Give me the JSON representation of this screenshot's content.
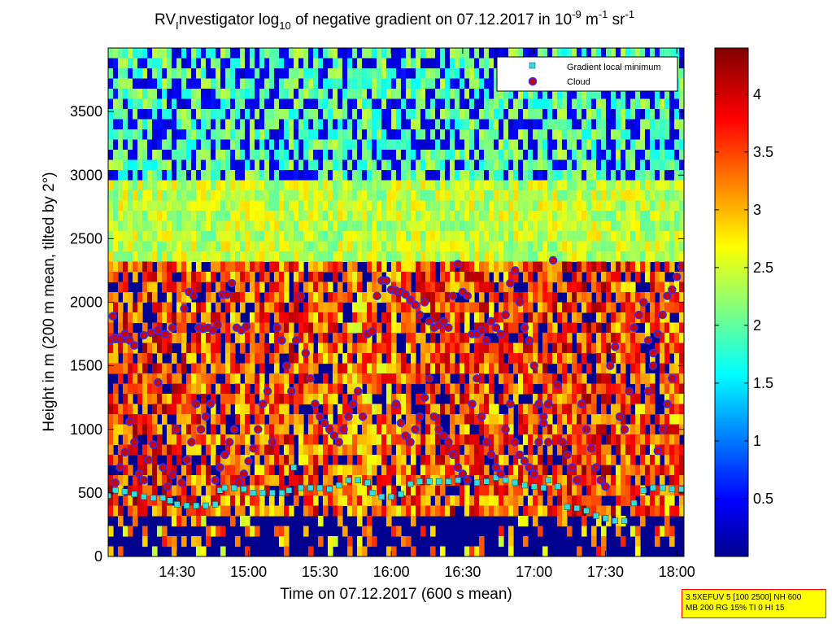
{
  "chart_data": {
    "type": "heatmap",
    "title": {
      "prefix": "RV",
      "sub1": "I",
      "middle": "nvestigator log",
      "sub2": "10",
      "rest": " of negative gradient on 07.12.2017 in 10",
      "sup1": "-9",
      "unit_m": " m",
      "sup2": "-1",
      "unit_sr": " sr",
      "sup3": "-1"
    },
    "xlabel": "Time on 07.12.2017 (600 s mean)",
    "ylabel": "Height in m (200 m mean, tilted by 2°)",
    "x_ticks": [
      "14:30",
      "15:00",
      "15:30",
      "16:00",
      "16:30",
      "17:00",
      "17:30",
      "18:00"
    ],
    "x_tick_minutes": [
      870,
      900,
      930,
      960,
      990,
      1020,
      1050,
      1080
    ],
    "xlim_minutes": [
      841,
      1083
    ],
    "ylim": [
      0,
      4000
    ],
    "y_ticks": [
      "0",
      "500",
      "1000",
      "1500",
      "2000",
      "2500",
      "3000",
      "3500"
    ],
    "y_tick_values": [
      0,
      500,
      1000,
      1500,
      2000,
      2500,
      3000,
      3500
    ],
    "colorbar": {
      "range": [
        0,
        4.4
      ],
      "ticks": [
        "0.5",
        "1",
        "1.5",
        "2",
        "2.5",
        "3",
        "3.5",
        "4"
      ],
      "tick_values": [
        0.5,
        1,
        1.5,
        2,
        2.5,
        3,
        3.5,
        4
      ],
      "colormap": "jet"
    },
    "legend": {
      "placement": "top-right",
      "entries": [
        {
          "name": "Gradient local minimum",
          "color": "#00ffff",
          "marker": "square"
        },
        {
          "name": "Cloud",
          "color": "#ff0000",
          "marker": "circle"
        }
      ]
    },
    "series": [
      {
        "name": "Gradient local minimum",
        "points": [
          [
            841,
            480
          ],
          [
            844,
            520
          ],
          [
            848,
            510
          ],
          [
            852,
            490
          ],
          [
            856,
            470
          ],
          [
            860,
            460
          ],
          [
            864,
            460
          ],
          [
            867,
            440
          ],
          [
            870,
            410
          ],
          [
            874,
            400
          ],
          [
            878,
            400
          ],
          [
            882,
            400
          ],
          [
            886,
            410
          ],
          [
            888,
            520
          ],
          [
            890,
            540
          ],
          [
            894,
            540
          ],
          [
            898,
            530
          ],
          [
            902,
            500
          ],
          [
            906,
            500
          ],
          [
            910,
            500
          ],
          [
            914,
            500
          ],
          [
            917,
            520
          ],
          [
            919,
            700
          ],
          [
            922,
            540
          ],
          [
            926,
            540
          ],
          [
            930,
            540
          ],
          [
            934,
            530
          ],
          [
            938,
            560
          ],
          [
            942,
            600
          ],
          [
            946,
            600
          ],
          [
            950,
            580
          ],
          [
            952,
            500
          ],
          [
            956,
            470
          ],
          [
            960,
            470
          ],
          [
            964,
            490
          ],
          [
            968,
            570
          ],
          [
            972,
            590
          ],
          [
            976,
            590
          ],
          [
            980,
            590
          ],
          [
            984,
            590
          ],
          [
            988,
            600
          ],
          [
            992,
            600
          ],
          [
            996,
            580
          ],
          [
            1000,
            590
          ],
          [
            1004,
            620
          ],
          [
            1008,
            600
          ],
          [
            1012,
            580
          ],
          [
            1016,
            560
          ],
          [
            1020,
            550
          ],
          [
            1024,
            540
          ],
          [
            1026,
            600
          ],
          [
            1030,
            550
          ],
          [
            1034,
            390
          ],
          [
            1038,
            380
          ],
          [
            1042,
            360
          ],
          [
            1046,
            320
          ],
          [
            1050,
            300
          ],
          [
            1054,
            280
          ],
          [
            1058,
            280
          ],
          [
            1062,
            420
          ],
          [
            1066,
            520
          ],
          [
            1070,
            540
          ],
          [
            1074,
            540
          ],
          [
            1078,
            530
          ],
          [
            1082,
            530
          ]
        ]
      },
      {
        "name": "Cloud",
        "points": [
          [
            842,
            1700
          ],
          [
            843,
            1890
          ],
          [
            844,
            1720
          ],
          [
            846,
            1710
          ],
          [
            848,
            1750
          ],
          [
            850,
            1700
          ],
          [
            852,
            1660
          ],
          [
            856,
            1740
          ],
          [
            859,
            1760
          ],
          [
            862,
            1780
          ],
          [
            865,
            1750
          ],
          [
            868,
            1800
          ],
          [
            844,
            580
          ],
          [
            846,
            700
          ],
          [
            848,
            820
          ],
          [
            850,
            1060
          ],
          [
            852,
            900
          ],
          [
            854,
            650
          ],
          [
            856,
            600
          ],
          [
            858,
            760
          ],
          [
            860,
            880
          ],
          [
            862,
            1370
          ],
          [
            864,
            700
          ],
          [
            866,
            550
          ],
          [
            868,
            640
          ],
          [
            870,
            1000
          ],
          [
            872,
            580
          ],
          [
            874,
            760
          ],
          [
            876,
            900
          ],
          [
            878,
            1200
          ],
          [
            873,
            1950
          ],
          [
            875,
            2080
          ],
          [
            877,
            2050
          ],
          [
            879,
            1800
          ],
          [
            881,
            1790
          ],
          [
            883,
            1800
          ],
          [
            885,
            1780
          ],
          [
            887,
            1820
          ],
          [
            889,
            2060
          ],
          [
            891,
            2060
          ],
          [
            893,
            2150
          ],
          [
            895,
            1800
          ],
          [
            897,
            1780
          ],
          [
            899,
            1810
          ],
          [
            880,
            1000
          ],
          [
            882,
            1100
          ],
          [
            884,
            1200
          ],
          [
            886,
            600
          ],
          [
            888,
            700
          ],
          [
            890,
            800
          ],
          [
            892,
            900
          ],
          [
            894,
            1000
          ],
          [
            896,
            580
          ],
          [
            898,
            650
          ],
          [
            900,
            750
          ],
          [
            902,
            850
          ],
          [
            904,
            1000
          ],
          [
            906,
            1200
          ],
          [
            908,
            1300
          ],
          [
            910,
            900
          ],
          [
            912,
            1800
          ],
          [
            914,
            1700
          ],
          [
            916,
            1500
          ],
          [
            918,
            1300
          ],
          [
            920,
            1700
          ],
          [
            922,
            2050
          ],
          [
            924,
            1600
          ],
          [
            926,
            1400
          ],
          [
            928,
            1200
          ],
          [
            930,
            1100
          ],
          [
            932,
            1050
          ],
          [
            934,
            1000
          ],
          [
            936,
            950
          ],
          [
            938,
            900
          ],
          [
            940,
            1000
          ],
          [
            942,
            1100
          ],
          [
            944,
            1200
          ],
          [
            946,
            1300
          ],
          [
            948,
            1100
          ],
          [
            950,
            1750
          ],
          [
            952,
            1770
          ],
          [
            954,
            2050
          ],
          [
            956,
            2170
          ],
          [
            958,
            2170
          ],
          [
            960,
            2100
          ],
          [
            962,
            2090
          ],
          [
            964,
            2080
          ],
          [
            966,
            2060
          ],
          [
            968,
            2020
          ],
          [
            970,
            1980
          ],
          [
            972,
            1900
          ],
          [
            974,
            2000
          ],
          [
            976,
            1850
          ],
          [
            978,
            1800
          ],
          [
            980,
            1820
          ],
          [
            982,
            1850
          ],
          [
            984,
            1800
          ],
          [
            986,
            2050
          ],
          [
            988,
            2300
          ],
          [
            990,
            2080
          ],
          [
            992,
            2050
          ],
          [
            994,
            1750
          ],
          [
            996,
            1750
          ],
          [
            998,
            1780
          ],
          [
            1000,
            1700
          ],
          [
            1002,
            1850
          ],
          [
            1004,
            1800
          ],
          [
            1006,
            1750
          ],
          [
            1008,
            1900
          ],
          [
            1010,
            2150
          ],
          [
            1012,
            2250
          ],
          [
            1014,
            2000
          ],
          [
            1016,
            1800
          ],
          [
            1018,
            1700
          ],
          [
            1020,
            1500
          ],
          [
            1022,
            1200
          ],
          [
            1024,
            1100
          ],
          [
            1026,
            900
          ],
          [
            1028,
            2330
          ],
          [
            962,
            1200
          ],
          [
            964,
            1050
          ],
          [
            966,
            950
          ],
          [
            968,
            900
          ],
          [
            970,
            1000
          ],
          [
            972,
            1100
          ],
          [
            974,
            1250
          ],
          [
            976,
            1400
          ],
          [
            978,
            1100
          ],
          [
            980,
            1000
          ],
          [
            982,
            950
          ],
          [
            984,
            900
          ],
          [
            986,
            800
          ],
          [
            988,
            700
          ],
          [
            990,
            650
          ],
          [
            992,
            600
          ],
          [
            994,
            1200
          ],
          [
            996,
            1400
          ],
          [
            998,
            1100
          ],
          [
            1000,
            900
          ],
          [
            1002,
            800
          ],
          [
            1004,
            700
          ],
          [
            1006,
            650
          ],
          [
            1008,
            1000
          ],
          [
            1010,
            1200
          ],
          [
            1012,
            900
          ],
          [
            1014,
            800
          ],
          [
            1016,
            750
          ],
          [
            1018,
            700
          ],
          [
            1020,
            650
          ],
          [
            1022,
            900
          ],
          [
            1024,
            1050
          ],
          [
            1026,
            1200
          ],
          [
            1030,
            1350
          ],
          [
            1032,
            900
          ],
          [
            1034,
            800
          ],
          [
            1036,
            700
          ],
          [
            1038,
            600
          ],
          [
            1040,
            1200
          ],
          [
            1042,
            1000
          ],
          [
            1044,
            850
          ],
          [
            1046,
            700
          ],
          [
            1048,
            600
          ],
          [
            1050,
            550
          ],
          [
            1052,
            1500
          ],
          [
            1054,
            1650
          ],
          [
            1056,
            1100
          ],
          [
            1058,
            1000
          ],
          [
            1060,
            1300
          ],
          [
            1062,
            1800
          ],
          [
            1064,
            1900
          ],
          [
            1066,
            2000
          ],
          [
            1068,
            1700
          ],
          [
            1070,
            1600
          ],
          [
            1072,
            1750
          ],
          [
            1074,
            1900
          ],
          [
            1076,
            2050
          ],
          [
            1078,
            2100
          ],
          [
            1080,
            2200
          ],
          [
            1082,
            2280
          ],
          [
            1068,
            1300
          ],
          [
            1070,
            1500
          ],
          [
            1072,
            830
          ],
          [
            1074,
            1000
          ],
          [
            1076,
            1200
          ],
          [
            1078,
            1400
          ]
        ]
      }
    ]
  },
  "info_box": {
    "line1": "3.5XEFUV 5 [100 2500] NH 600",
    "line2": "MB 200 RG 15% TI 0 HI 15"
  },
  "colors": {
    "background_field": "#00008f",
    "cloud_marker_fill": "#cc0000",
    "cloud_marker_edge": "#3030ff",
    "minimum_marker": "#33dddd"
  }
}
